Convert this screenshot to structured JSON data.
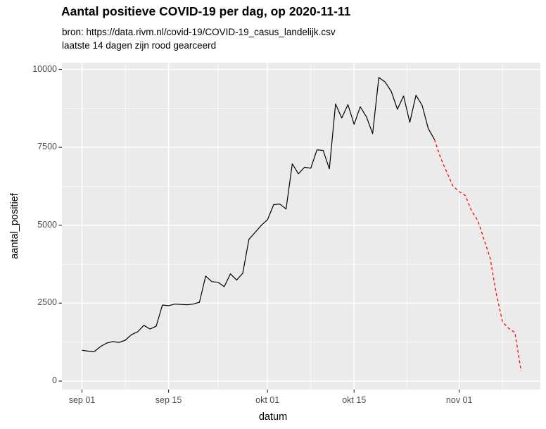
{
  "header": {
    "title": "Aantal positieve COVID-19 per dag, op 2020-11-11",
    "subtitle1": "bron: https://data.rivm.nl/covid-19/COVID-19_casus_landelijk.csv",
    "subtitle2": "laatste 14 dagen zijn rood gearceerd"
  },
  "axes": {
    "x_label": "datum",
    "y_label": "aantal_positief"
  },
  "chart_data": {
    "type": "line",
    "title": "Aantal positieve COVID-19 per dag, op 2020-11-11",
    "subtitle": [
      "bron: https://data.rivm.nl/covid-19/COVID-19_casus_landelijk.csv",
      "laatste 14 dagen zijn rood gearceerd"
    ],
    "xlabel": "datum",
    "ylabel": "aantal_positief",
    "ylim": [
      0,
      10000
    ],
    "grid": "ggplot-gray",
    "legend": "none",
    "x_tick_labels": [
      "sep 01",
      "sep 15",
      "okt 01",
      "okt 15",
      "nov 01"
    ],
    "x_tick_days": [
      0,
      14,
      30,
      44,
      61
    ],
    "x_minor_days": [
      7,
      22,
      37,
      52.5,
      68
    ],
    "y_ticks": [
      0,
      2500,
      5000,
      7500,
      10000
    ],
    "y_minor_ticks": [
      1250,
      3750,
      6250,
      8750
    ],
    "red_note": "last 14 days (2020-10-29 t/m 2020-11-11) drawn as red dashed line",
    "red_start_index": 57,
    "x": [
      "2020-09-01",
      "2020-09-02",
      "2020-09-03",
      "2020-09-04",
      "2020-09-05",
      "2020-09-06",
      "2020-09-07",
      "2020-09-08",
      "2020-09-09",
      "2020-09-10",
      "2020-09-11",
      "2020-09-12",
      "2020-09-13",
      "2020-09-14",
      "2020-09-15",
      "2020-09-16",
      "2020-09-17",
      "2020-09-18",
      "2020-09-19",
      "2020-09-20",
      "2020-09-21",
      "2020-09-22",
      "2020-09-23",
      "2020-09-24",
      "2020-09-25",
      "2020-09-26",
      "2020-09-27",
      "2020-09-28",
      "2020-09-29",
      "2020-09-30",
      "2020-10-01",
      "2020-10-02",
      "2020-10-03",
      "2020-10-04",
      "2020-10-05",
      "2020-10-06",
      "2020-10-07",
      "2020-10-08",
      "2020-10-09",
      "2020-10-10",
      "2020-10-11",
      "2020-10-12",
      "2020-10-13",
      "2020-10-14",
      "2020-10-15",
      "2020-10-16",
      "2020-10-17",
      "2020-10-18",
      "2020-10-19",
      "2020-10-20",
      "2020-10-21",
      "2020-10-22",
      "2020-10-23",
      "2020-10-24",
      "2020-10-25",
      "2020-10-26",
      "2020-10-27",
      "2020-10-28",
      "2020-10-29",
      "2020-10-30",
      "2020-10-31",
      "2020-11-01",
      "2020-11-02",
      "2020-11-03",
      "2020-11-04",
      "2020-11-05",
      "2020-11-06",
      "2020-11-07",
      "2020-11-08",
      "2020-11-09",
      "2020-11-10",
      "2020-11-11"
    ],
    "values": [
      990,
      960,
      950,
      1110,
      1220,
      1270,
      1240,
      1310,
      1490,
      1580,
      1790,
      1670,
      1760,
      2440,
      2420,
      2470,
      2460,
      2450,
      2470,
      2530,
      3370,
      3190,
      3170,
      3030,
      3440,
      3240,
      3460,
      4550,
      4770,
      5000,
      5180,
      5660,
      5680,
      5520,
      6970,
      6650,
      6860,
      6830,
      7420,
      7400,
      6810,
      8890,
      8440,
      8870,
      8240,
      8800,
      8480,
      7940,
      9740,
      9600,
      9300,
      8720,
      9150,
      8300,
      9170,
      8850,
      8100,
      7750,
      7150,
      6700,
      6250,
      6080,
      5950,
      5450,
      5150,
      4550,
      3950,
      2800,
      1900,
      1690,
      1560,
      320
    ],
    "series": [
      {
        "name": "aantal_positief (definitief)",
        "style": "solid",
        "color": "#000000",
        "range": "2020-09-01 t/m 2020-10-28"
      },
      {
        "name": "laatste 14 dagen",
        "style": "dashed",
        "color": "#FF0000",
        "range": "2020-10-28 t/m 2020-11-11"
      }
    ],
    "colors": {
      "panel_background": "#EBEBEB",
      "grid_lines": "#FFFFFF",
      "line_main": "#000000",
      "line_recent": "#FF0000",
      "tick_text": "#4D4D4D",
      "tick_marks": "#333333"
    }
  }
}
